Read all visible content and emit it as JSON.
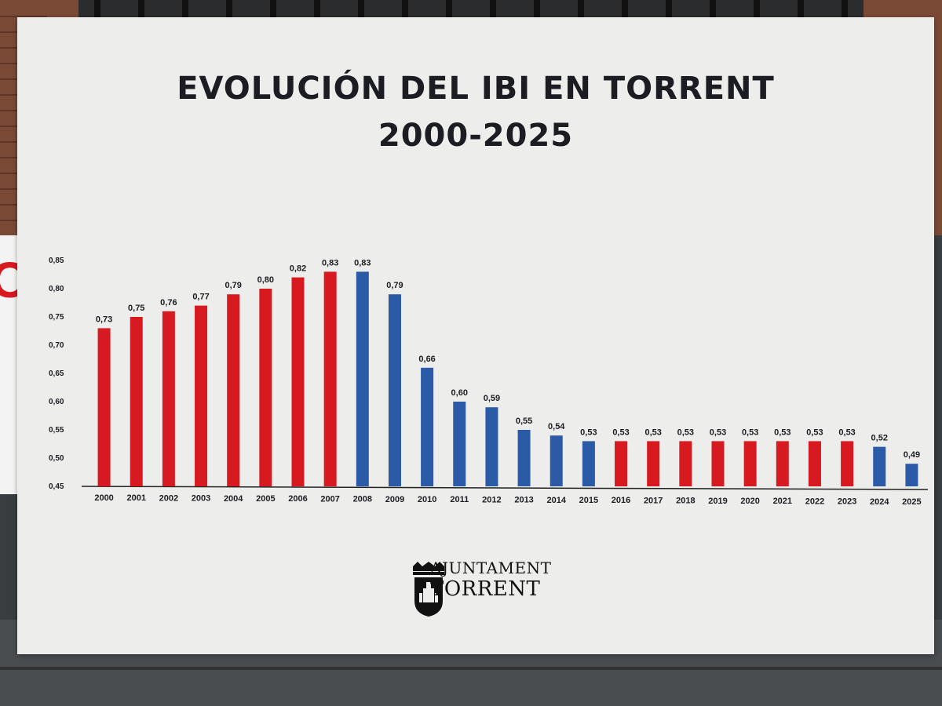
{
  "title_line1": "EVOLUCIÓN DEL IBI EN TORRENT",
  "title_line2": "2000-2025",
  "logo": {
    "line1": "AJUNTAMENT",
    "line2": "TORRENT"
  },
  "colors": {
    "red": "#d71920",
    "blue": "#2b5aa6",
    "axis": "#222222",
    "text": "#1b1d22"
  },
  "background_sign_text": "IO",
  "chart_data": {
    "type": "bar",
    "categories": [
      "2000",
      "2001",
      "2002",
      "2003",
      "2004",
      "2005",
      "2006",
      "2007",
      "2008",
      "2009",
      "2010",
      "2011",
      "2012",
      "2013",
      "2014",
      "2015",
      "2016",
      "2017",
      "2018",
      "2019",
      "2020",
      "2021",
      "2022",
      "2023",
      "2024",
      "2025"
    ],
    "values": [
      0.73,
      0.75,
      0.76,
      0.77,
      0.79,
      0.8,
      0.82,
      0.83,
      0.83,
      0.79,
      0.66,
      0.6,
      0.59,
      0.55,
      0.54,
      0.53,
      0.53,
      0.53,
      0.53,
      0.53,
      0.53,
      0.53,
      0.53,
      0.53,
      0.52,
      0.49
    ],
    "value_labels": [
      "0,73",
      "0,75",
      "0,76",
      "0,77",
      "0,79",
      "0,80",
      "0,82",
      "0,83",
      "0,83",
      "0,79",
      "0,66",
      "0,60",
      "0,59",
      "0,55",
      "0,54",
      "0,53",
      "0,53",
      "0,53",
      "0,53",
      "0,53",
      "0,53",
      "0,53",
      "0,53",
      "0,53",
      "0,52",
      "0,49"
    ],
    "bar_colors": [
      "red",
      "red",
      "red",
      "red",
      "red",
      "red",
      "red",
      "red",
      "blue",
      "blue",
      "blue",
      "blue",
      "blue",
      "blue",
      "blue",
      "blue",
      "red",
      "red",
      "red",
      "red",
      "red",
      "red",
      "red",
      "red",
      "blue",
      "blue"
    ],
    "yticks": [
      "0,45",
      "0,50",
      "0,55",
      "0,60",
      "0,65",
      "0,70",
      "0,75",
      "0,80",
      "0,85"
    ],
    "ytick_values": [
      0.45,
      0.5,
      0.55,
      0.6,
      0.65,
      0.7,
      0.75,
      0.8,
      0.85
    ],
    "ylim": [
      0.45,
      0.85
    ],
    "grid": false,
    "title": "",
    "xlabel": "",
    "ylabel": ""
  }
}
